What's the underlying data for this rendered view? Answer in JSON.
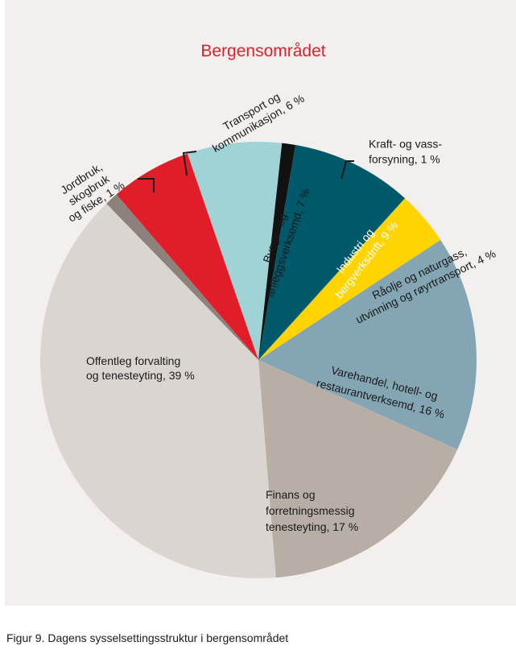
{
  "caption": "Figur 9. Dagens sysselsettingsstruktur i bergensområdet",
  "chart_data": {
    "type": "pie",
    "title": "Bergensområdet",
    "slices": [
      {
        "label": [
          "Bygge- og",
          "anleggsverksemd, 7 %"
        ],
        "value": 7,
        "color": "#a0d3d5"
      },
      {
        "label": [
          "Kraft- og vass-",
          "forsyning, 1 %"
        ],
        "value": 1,
        "color": "#111111"
      },
      {
        "label": [
          "Industri og",
          "bergverksdrift, 9 %"
        ],
        "value": 9,
        "color": "#00596a"
      },
      {
        "label": [
          "Råolje og naturgass,",
          "utvinning og røyrtransport, 4 %"
        ],
        "value": 4,
        "color": "#ffd400"
      },
      {
        "label": [
          "Varehandel, hotell- og",
          "restaurantverksemd, 16 %"
        ],
        "value": 16,
        "color": "#84a6b4"
      },
      {
        "label": [
          "Finans og",
          "forretningsmessig",
          "tenesteyting, 17 %"
        ],
        "value": 17,
        "color": "#b7aea6"
      },
      {
        "label": [
          "Offentleg forvalting",
          "og tenesteyting, 39 %"
        ],
        "value": 39,
        "color": "#dbd5d1"
      },
      {
        "label": [
          "Jordbruk,",
          "skogbruk",
          "og fiske, 1 %"
        ],
        "value": 1,
        "color": "#8d817b"
      },
      {
        "label": [
          "Transport og",
          "kommunikasjon, 6 %"
        ],
        "value": 6,
        "color": "#e21d2a"
      }
    ]
  }
}
